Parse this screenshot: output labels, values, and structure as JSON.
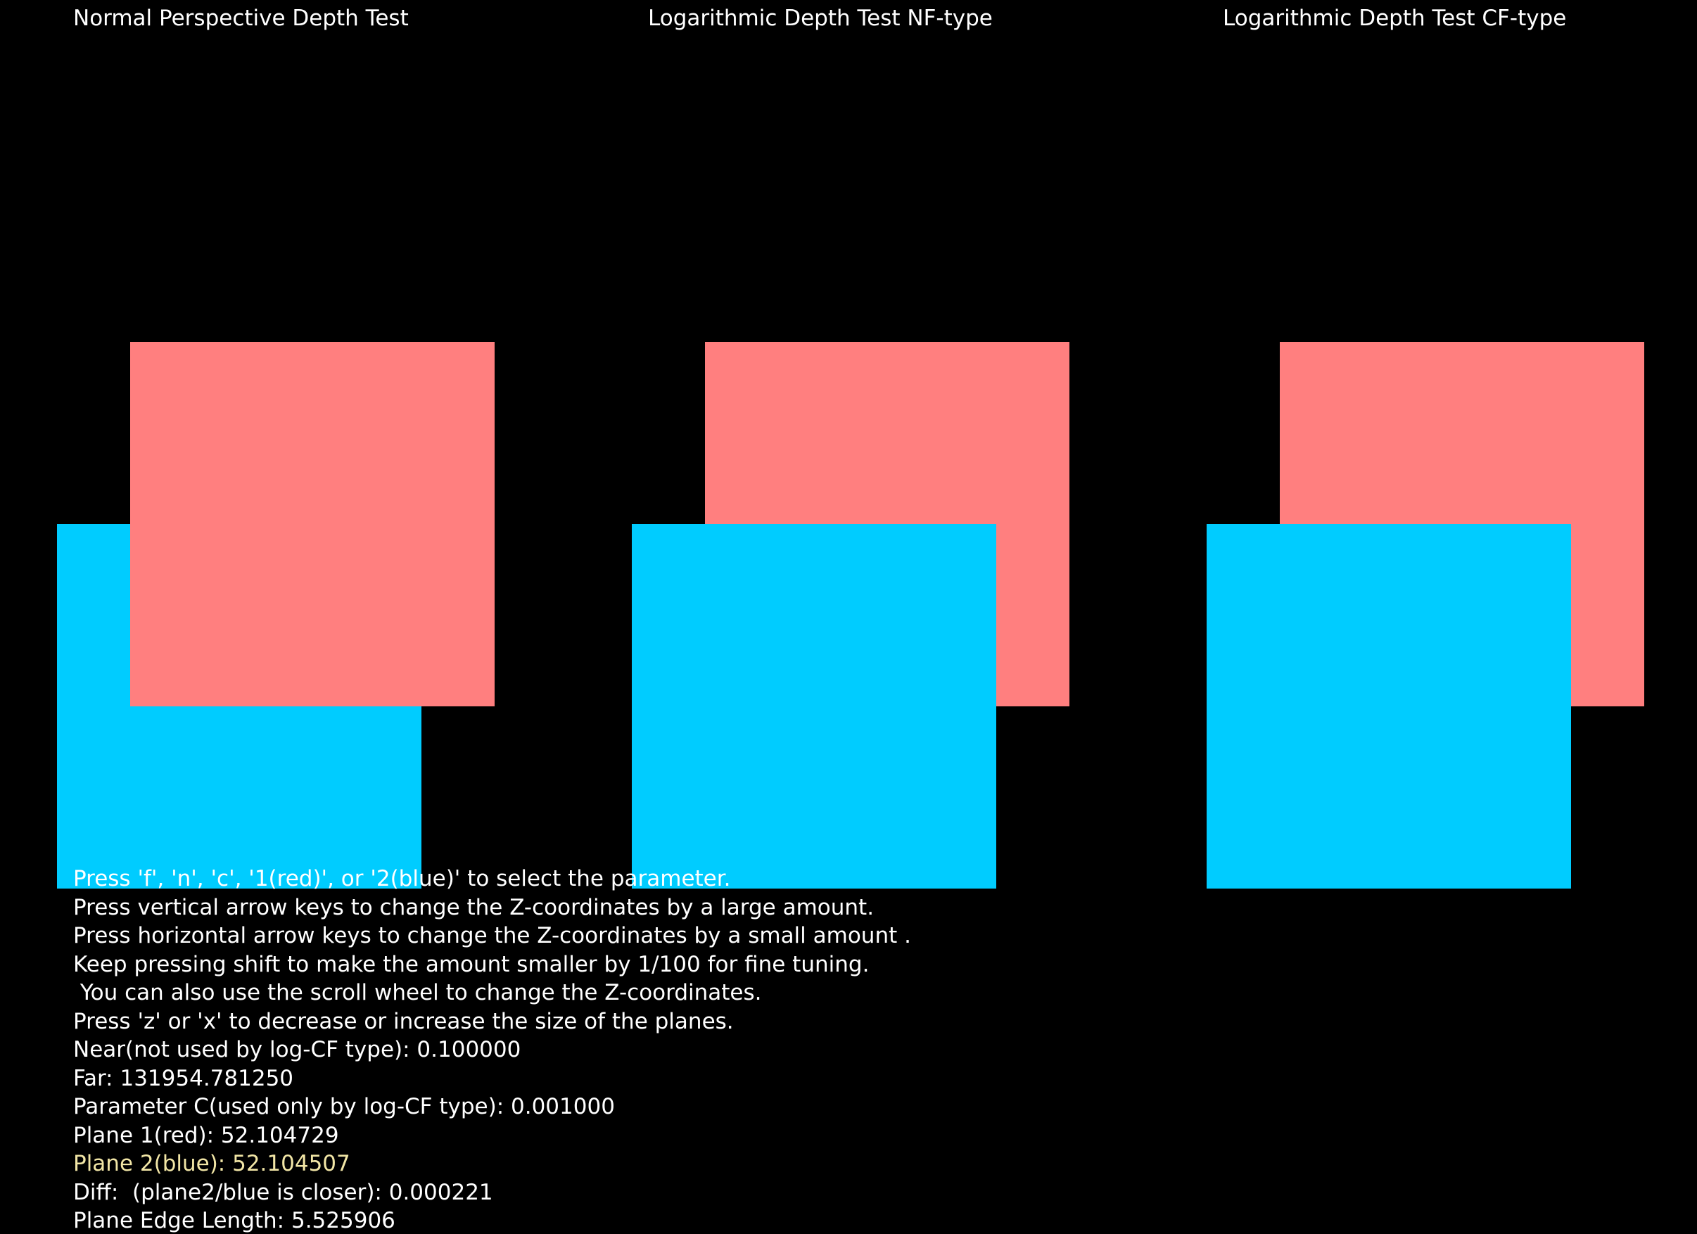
{
  "panels": [
    {
      "title": "Normal Perspective Depth Test"
    },
    {
      "title": "Logarithmic Depth Test NF-type"
    },
    {
      "title": "Logarithmic Depth Test CF-type"
    }
  ],
  "colors": {
    "background": "#000000",
    "plane_red": "#ff7f7f",
    "plane_blue": "#00ccff",
    "text": "#ffffff",
    "selected_text": "#f2e6a6"
  },
  "instructions": [
    "Press 'f', 'n', 'c', '1(red)', or '2(blue)' to select the parameter.",
    "Press vertical arrow keys to change the Z-coordinates by a large amount.",
    "Press horizontal arrow keys to change the Z-coordinates by a small amount .",
    "Keep pressing shift to make the amount smaller by 1/100 for fine tuning.",
    " You can also use the scroll wheel to change the Z-coordinates.",
    "Press 'z' or 'x' to decrease or increase the size of the planes."
  ],
  "params": {
    "near": "Near(not used by log-CF type): 0.100000",
    "far": "Far: 131954.781250",
    "param_c": "Parameter C(used only by log-CF type): 0.001000",
    "plane1": "Plane 1(red): 52.104729",
    "plane2": "Plane 2(blue): 52.104507",
    "diff": "Diff:  (plane2/blue is closer): 0.000221",
    "edge": "Plane Edge Length: 5.525906"
  }
}
